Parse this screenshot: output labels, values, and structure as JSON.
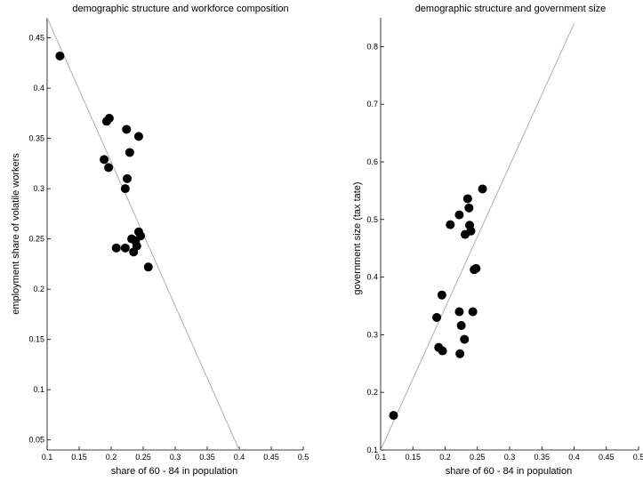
{
  "chart_data": [
    {
      "type": "scatter",
      "title": "demographic structure and workforce composition",
      "xlabel": "share of 60 - 84 in population",
      "ylabel": "employment share of volatile workers",
      "xlim": [
        0.1,
        0.5
      ],
      "ylim": [
        0.04,
        0.47
      ],
      "xticks": [
        0.1,
        0.15,
        0.2,
        0.25,
        0.3,
        0.35,
        0.4,
        0.45,
        0.5
      ],
      "xtick_labels": [
        "0.1",
        "0.15",
        "0.2",
        "0.25",
        "0.3",
        "0.35",
        "0.4",
        "0.45",
        "0.5"
      ],
      "yticks": [
        0.05,
        0.1,
        0.15,
        0.2,
        0.25,
        0.3,
        0.35,
        0.4,
        0.45
      ],
      "ytick_labels": [
        "0.05",
        "0.1",
        "0.15",
        "0.2",
        "0.25",
        "0.3",
        "0.35",
        "0.4",
        "0.45"
      ],
      "fit_line": {
        "x": [
          0.1,
          0.4
        ],
        "y": [
          0.47,
          0.04
        ]
      },
      "points": [
        {
          "x": 0.12,
          "y": 0.432
        },
        {
          "x": 0.193,
          "y": 0.367
        },
        {
          "x": 0.197,
          "y": 0.37
        },
        {
          "x": 0.224,
          "y": 0.359
        },
        {
          "x": 0.243,
          "y": 0.352
        },
        {
          "x": 0.229,
          "y": 0.336
        },
        {
          "x": 0.189,
          "y": 0.329
        },
        {
          "x": 0.196,
          "y": 0.321
        },
        {
          "x": 0.225,
          "y": 0.31
        },
        {
          "x": 0.222,
          "y": 0.3
        },
        {
          "x": 0.243,
          "y": 0.257
        },
        {
          "x": 0.246,
          "y": 0.253
        },
        {
          "x": 0.232,
          "y": 0.25
        },
        {
          "x": 0.238,
          "y": 0.248
        },
        {
          "x": 0.208,
          "y": 0.241
        },
        {
          "x": 0.222,
          "y": 0.241
        },
        {
          "x": 0.24,
          "y": 0.243
        },
        {
          "x": 0.235,
          "y": 0.237
        },
        {
          "x": 0.258,
          "y": 0.222
        }
      ],
      "grid": false
    },
    {
      "type": "scatter",
      "title": "demographic structure and government size",
      "xlabel": "share of 60 - 84 in population",
      "ylabel": "government size (tax tate)",
      "xlim": [
        0.1,
        0.5
      ],
      "ylim": [
        0.1,
        0.85
      ],
      "xticks": [
        0.1,
        0.15,
        0.2,
        0.25,
        0.3,
        0.35,
        0.4,
        0.45,
        0.5
      ],
      "xtick_labels": [
        "0.1",
        "0.15",
        "0.2",
        "0.25",
        "0.3",
        "0.35",
        "0.4",
        "0.45",
        "0.5"
      ],
      "yticks": [
        0.1,
        0.2,
        0.3,
        0.4,
        0.5,
        0.6,
        0.7,
        0.8
      ],
      "ytick_labels": [
        "0.1",
        "0.2",
        "0.3",
        "0.4",
        "0.5",
        "0.6",
        "0.7",
        "0.8"
      ],
      "fit_line": {
        "x": [
          0.1,
          0.4
        ],
        "y": [
          0.1,
          0.84
        ]
      },
      "points": [
        {
          "x": 0.12,
          "y": 0.16
        },
        {
          "x": 0.258,
          "y": 0.553
        },
        {
          "x": 0.235,
          "y": 0.536
        },
        {
          "x": 0.237,
          "y": 0.52
        },
        {
          "x": 0.222,
          "y": 0.508
        },
        {
          "x": 0.208,
          "y": 0.491
        },
        {
          "x": 0.238,
          "y": 0.49
        },
        {
          "x": 0.24,
          "y": 0.48
        },
        {
          "x": 0.231,
          "y": 0.474
        },
        {
          "x": 0.248,
          "y": 0.415
        },
        {
          "x": 0.245,
          "y": 0.413
        },
        {
          "x": 0.195,
          "y": 0.369
        },
        {
          "x": 0.222,
          "y": 0.34
        },
        {
          "x": 0.243,
          "y": 0.34
        },
        {
          "x": 0.187,
          "y": 0.33
        },
        {
          "x": 0.225,
          "y": 0.316
        },
        {
          "x": 0.23,
          "y": 0.292
        },
        {
          "x": 0.19,
          "y": 0.278
        },
        {
          "x": 0.196,
          "y": 0.272
        },
        {
          "x": 0.223,
          "y": 0.267
        }
      ],
      "grid": false
    }
  ]
}
